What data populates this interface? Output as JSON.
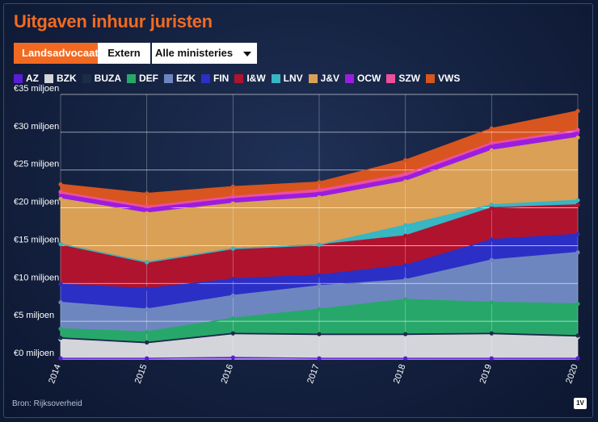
{
  "title": "Uitgaven inhuur juristen",
  "toggle": {
    "active_label": "Landsadvocaat",
    "inactive_label": "Extern"
  },
  "filter": {
    "selected": "Alle ministeries"
  },
  "source": "Bron: Rijksoverheid",
  "logo_text": "1V",
  "chart_data": {
    "type": "area",
    "stacked": true,
    "x": [
      "2014",
      "2015",
      "2016",
      "2017",
      "2018",
      "2019",
      "2020"
    ],
    "ylim": [
      0,
      35
    ],
    "yticks": [
      0,
      5,
      10,
      15,
      20,
      25,
      30,
      35
    ],
    "ytick_labels": [
      "€0 miljoen",
      "€5 miljoen",
      "€10 miljoen",
      "€15 miljoen",
      "€20 miljoen",
      "€25 miljoen",
      "€30 miljoen",
      "€35 miljoen"
    ],
    "grid": true,
    "legend_position": "top-left",
    "series": [
      {
        "name": "AZ",
        "color": "#5b1cd6",
        "values": [
          0.1,
          0.1,
          0.2,
          0.1,
          0.1,
          0.1,
          0.1
        ]
      },
      {
        "name": "BZK",
        "color": "#d3d5db",
        "values": [
          2.5,
          1.9,
          3.0,
          3.0,
          3.0,
          3.1,
          2.8
        ]
      },
      {
        "name": "BUZA",
        "color": "#1c2b4a",
        "values": [
          0.2,
          0.2,
          0.2,
          0.2,
          0.2,
          0.2,
          0.2
        ]
      },
      {
        "name": "DEF",
        "color": "#27a86a",
        "values": [
          1.2,
          1.4,
          2.0,
          3.3,
          4.6,
          4.1,
          4.2
        ]
      },
      {
        "name": "EZK",
        "color": "#6e86bf",
        "values": [
          3.5,
          3.0,
          3.0,
          3.1,
          2.6,
          5.6,
          6.8
        ]
      },
      {
        "name": "FIN",
        "color": "#2c2fc6",
        "values": [
          2.4,
          2.7,
          2.2,
          1.4,
          1.9,
          2.7,
          2.4
        ]
      },
      {
        "name": "I&W",
        "color": "#b0132e",
        "values": [
          5.3,
          3.5,
          4.0,
          4.0,
          3.9,
          4.2,
          3.9
        ]
      },
      {
        "name": "LNV",
        "color": "#37b6c4",
        "values": [
          0.0,
          0.0,
          0.0,
          0.0,
          1.4,
          0.4,
          0.6
        ]
      },
      {
        "name": "J&V",
        "color": "#d9a056",
        "values": [
          6.0,
          6.5,
          6.0,
          6.3,
          5.8,
          7.2,
          8.3
        ]
      },
      {
        "name": "OCW",
        "color": "#9a1ee0",
        "values": [
          0.5,
          0.5,
          0.5,
          0.5,
          0.5,
          0.6,
          0.6
        ]
      },
      {
        "name": "SZW",
        "color": "#ee4f9a",
        "values": [
          0.4,
          0.4,
          0.4,
          0.5,
          0.5,
          0.4,
          0.4
        ]
      },
      {
        "name": "VWS",
        "color": "#d8551f",
        "values": [
          1.0,
          1.7,
          1.3,
          1.0,
          1.8,
          1.9,
          2.5
        ]
      }
    ]
  }
}
